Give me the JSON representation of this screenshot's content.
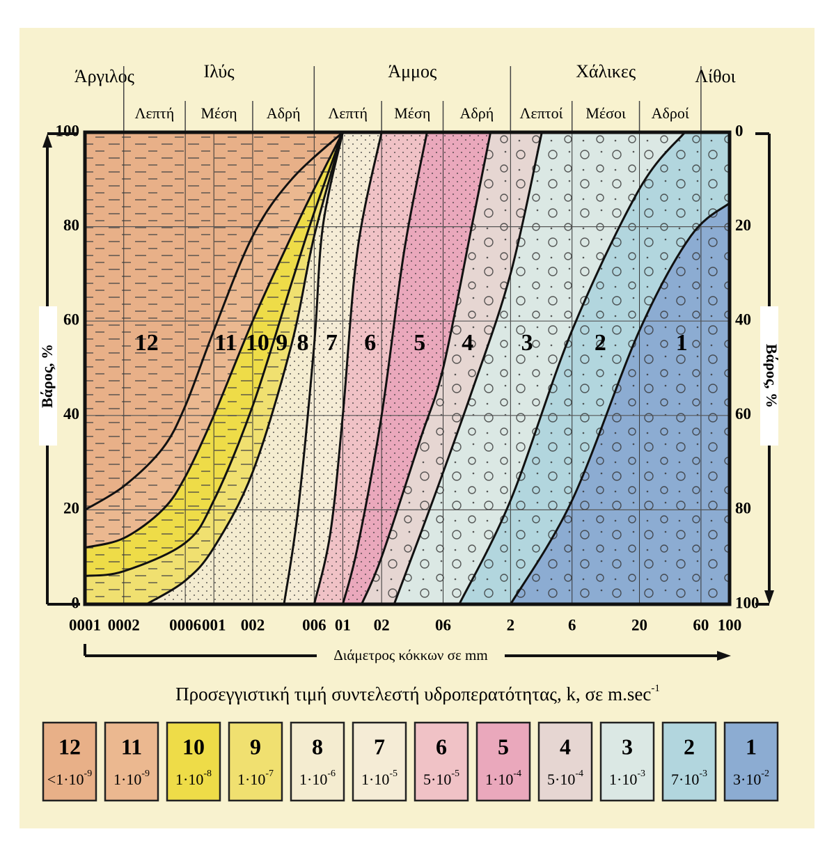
{
  "chart_data": {
    "type": "line",
    "xscale": "log",
    "xlabel": "Διάμετρος κόκκων σε mm",
    "ylabel": "Βάρος, %",
    "y2label": "Βάρος, %",
    "legend_title": "Προσεγγιστική τιμή συντελεστή υδροπερατότητας, k, σε m.sec",
    "legend_title_exp": "-1",
    "xlim": [
      0.001,
      100
    ],
    "xticks": [
      {
        "value": 0.001,
        "label": "0001"
      },
      {
        "value": 0.002,
        "label": "0002"
      },
      {
        "value": 0.006,
        "label": "0006"
      },
      {
        "value": 0.01,
        "label": "001"
      },
      {
        "value": 0.02,
        "label": "002"
      },
      {
        "value": 0.06,
        "label": "006"
      },
      {
        "value": 0.1,
        "label": "01"
      },
      {
        "value": 0.2,
        "label": "02"
      },
      {
        "value": 0.6,
        "label": "06"
      },
      2,
      6,
      20,
      60,
      100
    ],
    "ylim": [
      0,
      100
    ],
    "yticks": [
      0,
      20,
      40,
      60,
      80,
      100
    ],
    "y2lim": [
      100,
      0
    ],
    "y2ticks": [
      0,
      20,
      40,
      60,
      80,
      100
    ],
    "grid": true,
    "fractions": [
      {
        "name": "Άργιλος",
        "range": [
          0.001,
          0.002
        ],
        "parts": []
      },
      {
        "name": "Ιλύς",
        "range": [
          0.002,
          0.06
        ],
        "parts": [
          {
            "name": "Λεπτή",
            "range": [
              0.002,
              0.006
            ]
          },
          {
            "name": "Μέση",
            "range": [
              0.006,
              0.02
            ]
          },
          {
            "name": "Αδρή",
            "range": [
              0.02,
              0.06
            ]
          }
        ]
      },
      {
        "name": "Άμμος",
        "range": [
          0.06,
          2
        ],
        "parts": [
          {
            "name": "Λεπτή",
            "range": [
              0.06,
              0.2
            ]
          },
          {
            "name": "Μέση",
            "range": [
              0.2,
              0.6
            ]
          },
          {
            "name": "Αδρή",
            "range": [
              0.6,
              2
            ]
          }
        ]
      },
      {
        "name": "Χάλικες",
        "range": [
          2,
          60
        ],
        "parts": [
          {
            "name": "Λεπτοί",
            "range": [
              2,
              6
            ]
          },
          {
            "name": "Μέσοι",
            "range": [
              6,
              20
            ]
          },
          {
            "name": "Αδροί",
            "range": [
              20,
              60
            ]
          }
        ]
      },
      {
        "name": "Λίθοι",
        "range": [
          60,
          100
        ],
        "parts": []
      }
    ],
    "series": [
      {
        "color": "#111111",
        "x": [
          0.001,
          0.002,
          0.004,
          0.006,
          0.01,
          0.02,
          0.04,
          0.1
        ],
        "values": [
          20,
          25,
          33,
          42,
          58,
          78,
          90,
          100
        ]
      },
      {
        "color": "#111111",
        "x": [
          0.001,
          0.002,
          0.004,
          0.006,
          0.01,
          0.02,
          0.04,
          0.06,
          0.1
        ],
        "values": [
          12,
          14,
          20,
          27,
          40,
          60,
          78,
          88,
          100
        ]
      },
      {
        "color": "#111111",
        "x": [
          0.001,
          0.002,
          0.006,
          0.01,
          0.02,
          0.04,
          0.06,
          0.1
        ],
        "values": [
          6,
          7,
          13,
          22,
          42,
          68,
          83,
          100
        ]
      },
      {
        "color": "#111111",
        "x": [
          0.003,
          0.006,
          0.01,
          0.02,
          0.04,
          0.06,
          0.1
        ],
        "values": [
          0,
          5,
          12,
          28,
          55,
          78,
          100
        ]
      },
      {
        "color": "#111111",
        "x": [
          0.035,
          0.045,
          0.06,
          0.07,
          0.1
        ],
        "values": [
          0,
          20,
          55,
          80,
          100
        ]
      },
      {
        "color": "#111111",
        "x": [
          0.06,
          0.08,
          0.1,
          0.13,
          0.2
        ],
        "values": [
          0,
          15,
          40,
          75,
          100
        ]
      },
      {
        "color": "#111111",
        "x": [
          0.1,
          0.13,
          0.2,
          0.3,
          0.45
        ],
        "values": [
          0,
          12,
          40,
          75,
          100
        ]
      },
      {
        "color": "#111111",
        "x": [
          0.14,
          0.2,
          0.4,
          0.6,
          1,
          1.4
        ],
        "values": [
          0,
          10,
          35,
          50,
          80,
          100
        ]
      },
      {
        "color": "#111111",
        "x": [
          0.25,
          0.5,
          1,
          2,
          3.5
        ],
        "values": [
          0,
          22,
          45,
          70,
          100
        ]
      },
      {
        "color": "#111111",
        "x": [
          0.8,
          2,
          6,
          20,
          45
        ],
        "values": [
          0,
          22,
          58,
          88,
          100
        ]
      },
      {
        "color": "#111111",
        "x": [
          2,
          6,
          20,
          50,
          100
        ],
        "values": [
          0,
          22,
          58,
          78,
          85
        ]
      }
    ],
    "zones": [
      {
        "label": "12",
        "k": "<1·10",
        "k_exp": "-9",
        "color": "#e8b088"
      },
      {
        "label": "11",
        "k": "1·10",
        "k_exp": "-9",
        "color": "#ebb890"
      },
      {
        "label": "10",
        "k": "1·10",
        "k_exp": "-8",
        "color": "#eedc48"
      },
      {
        "label": "9",
        "k": "1·10",
        "k_exp": "-7",
        "color": "#f0e070"
      },
      {
        "label": "8",
        "k": "1·10",
        "k_exp": "-6",
        "color": "#f4ecd0"
      },
      {
        "label": "7",
        "k": "1·10",
        "k_exp": "-5",
        "color": "#f5ecd6"
      },
      {
        "label": "6",
        "k": "5·10",
        "k_exp": "-5",
        "color": "#f0c2c6"
      },
      {
        "label": "5",
        "k": "1·10",
        "k_exp": "-4",
        "color": "#eaa8bc"
      },
      {
        "label": "4",
        "k": "5·10",
        "k_exp": "-4",
        "color": "#e6d6d2"
      },
      {
        "label": "3",
        "k": "1·10",
        "k_exp": "-3",
        "color": "#dbe8e4"
      },
      {
        "label": "2",
        "k": "7·10",
        "k_exp": "-3",
        "color": "#b2d6de"
      },
      {
        "label": "1",
        "k": "3·10",
        "k_exp": "-2",
        "color": "#8cacd2"
      }
    ]
  }
}
